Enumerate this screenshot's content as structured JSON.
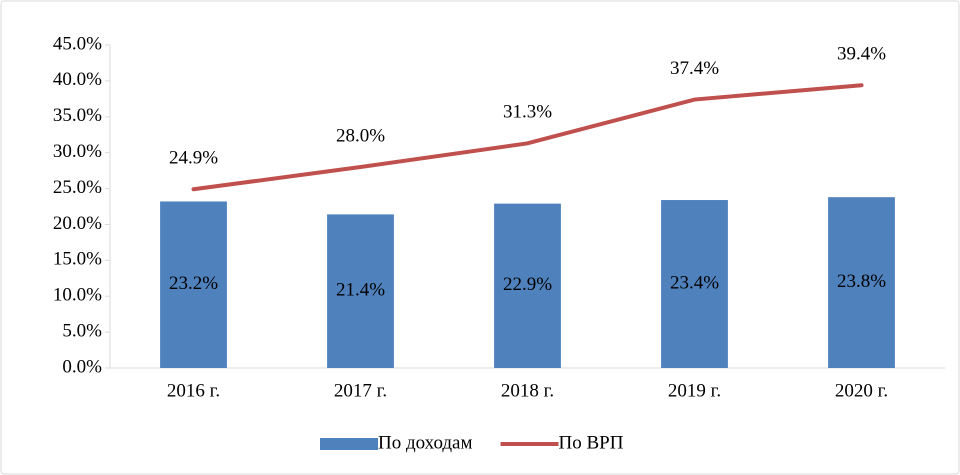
{
  "chart_data": {
    "type": "combo",
    "categories": [
      "2016 г.",
      "2017 г.",
      "2018 г.",
      "2019 г.",
      "2020 г."
    ],
    "series": [
      {
        "name": "По доходам",
        "type": "bar",
        "color": "#4f81bd",
        "values": [
          23.2,
          21.4,
          22.9,
          23.4,
          23.8
        ],
        "value_labels": [
          "23.2%",
          "21.4%",
          "22.9%",
          "23.4%",
          "23.8%"
        ]
      },
      {
        "name": "По ВРП",
        "type": "line",
        "color": "#c0504d",
        "values": [
          24.9,
          28.0,
          31.3,
          37.4,
          39.4
        ],
        "value_labels": [
          "24.9%",
          "28.0%",
          "31.3%",
          "37.4%",
          "39.4%"
        ]
      }
    ],
    "ylim": [
      0,
      45
    ],
    "yticks": [
      {
        "value": 0,
        "label": "0.0%"
      },
      {
        "value": 5,
        "label": "5.0%"
      },
      {
        "value": 10,
        "label": "10.0%"
      },
      {
        "value": 15,
        "label": "15.0%"
      },
      {
        "value": 20,
        "label": "20.0%"
      },
      {
        "value": 25,
        "label": "25.0%"
      },
      {
        "value": 30,
        "label": "30.0%"
      },
      {
        "value": 35,
        "label": "35.0%"
      },
      {
        "value": 40,
        "label": "40.0%"
      },
      {
        "value": 45,
        "label": "45.0%"
      }
    ],
    "grid": false,
    "legend": "bottom"
  }
}
